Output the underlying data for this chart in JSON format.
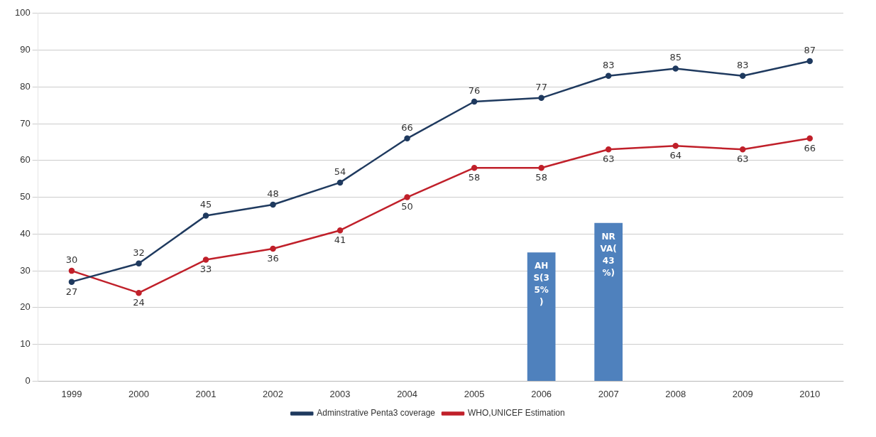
{
  "chart_data": {
    "type": "line",
    "categories": [
      "1999",
      "2000",
      "2001",
      "2002",
      "2003",
      "2004",
      "2005",
      "2006",
      "2007",
      "2008",
      "2009",
      "2010"
    ],
    "ylim": [
      0,
      100
    ],
    "yticks": [
      0,
      10,
      20,
      30,
      40,
      50,
      60,
      70,
      80,
      90,
      100
    ],
    "grid": "y",
    "legend": "bottom",
    "marker": "circle",
    "series": [
      {
        "type": "bar",
        "color": "#4f81bd",
        "values": [
          null,
          null,
          null,
          null,
          null,
          null,
          null,
          35,
          43,
          null,
          null,
          null
        ],
        "value_labels": [
          null,
          null,
          null,
          null,
          null,
          null,
          null,
          "AHS(35%)",
          "NRVA(43%)",
          null,
          null,
          null
        ]
      },
      {
        "name": "Adminstrative Penta3 coverage",
        "color": "#1f3a5f",
        "values": [
          27,
          32,
          45,
          48,
          54,
          66,
          76,
          77,
          83,
          85,
          83,
          87
        ],
        "value_labels": [
          "27",
          "32",
          "45",
          "48",
          "54",
          "66",
          "76",
          "77",
          "83",
          "85",
          "83",
          "87"
        ]
      },
      {
        "name": "WHO,UNICEF Estimation",
        "color": "#c0202a",
        "values": [
          30,
          24,
          33,
          36,
          41,
          50,
          58,
          58,
          63,
          64,
          63,
          66
        ],
        "value_labels": [
          "30",
          "24",
          "33",
          "36",
          "41",
          "50",
          "58",
          "58",
          "63",
          "64",
          "63",
          "66"
        ]
      }
    ]
  }
}
